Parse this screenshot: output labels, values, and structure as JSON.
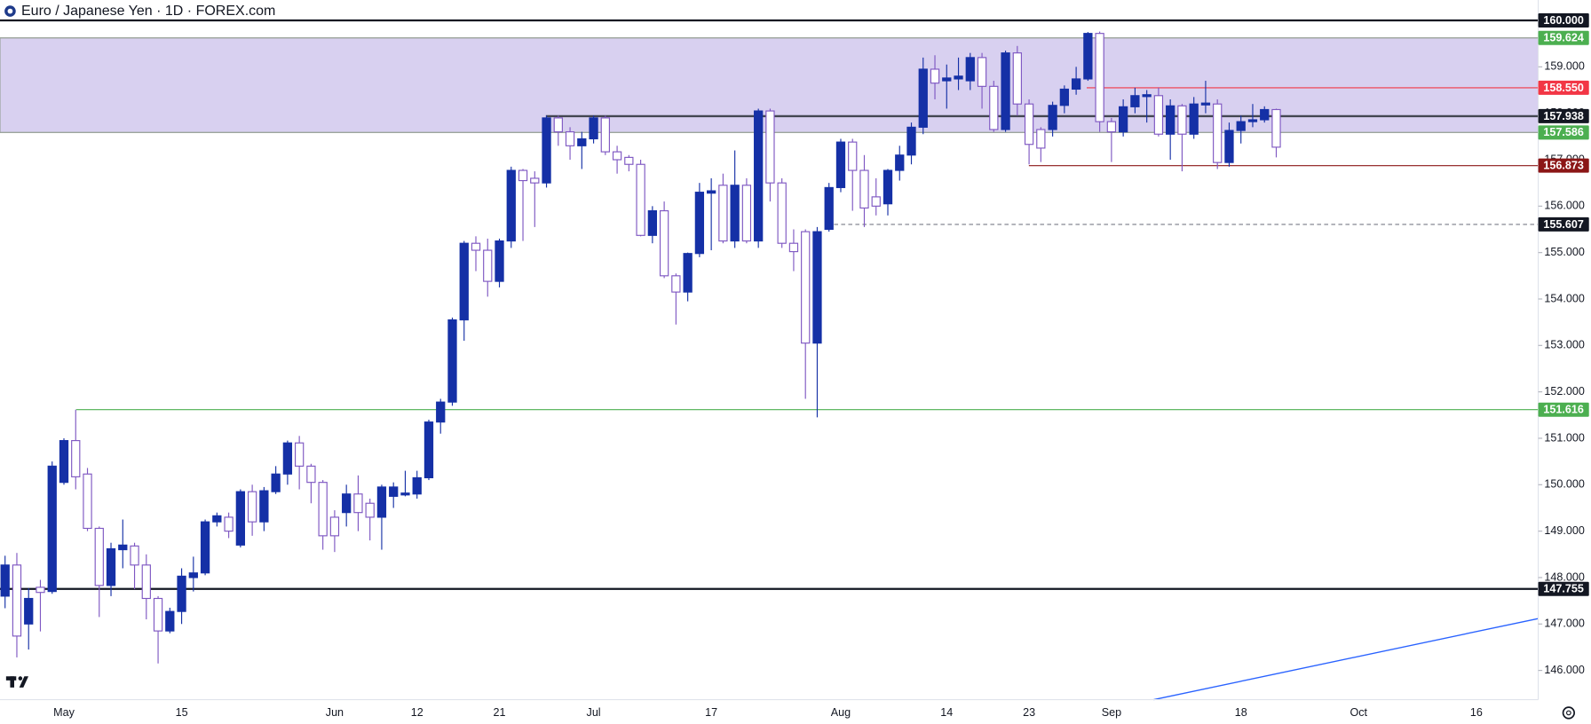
{
  "chart_data": {
    "type": "candlestick",
    "title": "Euro / Japanese Yen · 1D · FOREX.com",
    "categories": [
      null,
      null,
      null,
      null,
      null,
      "May",
      null,
      null,
      null,
      null,
      null,
      null,
      null,
      null,
      null,
      "15",
      null,
      null,
      null,
      null,
      null,
      null,
      null,
      null,
      null,
      null,
      null,
      null,
      "Jun",
      null,
      null,
      null,
      null,
      null,
      null,
      "12",
      null,
      null,
      null,
      null,
      null,
      null,
      "21",
      null,
      null,
      null,
      null,
      null,
      null,
      null,
      "Jul",
      null,
      null,
      null,
      null,
      null,
      null,
      null,
      null,
      null,
      "17",
      null,
      null,
      null,
      null,
      null,
      null,
      null,
      null,
      null,
      null,
      "Aug",
      null,
      null,
      null,
      null,
      null,
      null,
      null,
      null,
      "14",
      null,
      null,
      null,
      null,
      null,
      null,
      "23",
      null,
      null,
      null,
      null,
      null,
      null,
      "Sep",
      null,
      null,
      null,
      null,
      null,
      null,
      null,
      null,
      null,
      null,
      "18",
      null,
      null,
      null,
      null,
      null,
      null,
      null,
      null,
      null,
      "Oct",
      null,
      null,
      null,
      null,
      null,
      null,
      null,
      null,
      null,
      "16",
      null,
      null,
      null,
      null,
      null
    ],
    "open": [
      147.6,
      148.27,
      147,
      147.79,
      147.7,
      150.05,
      150.95,
      150.23,
      149.06,
      147.83,
      148.6,
      148.68,
      148.27,
      147.55,
      146.85,
      147.27,
      148,
      148.1,
      149.2,
      149.3,
      148.7,
      149.85,
      149.2,
      149.85,
      150.23,
      150.9,
      150.4,
      150.05,
      149.3,
      149.4,
      149.8,
      149.6,
      149.3,
      149.75,
      149.78,
      149.8,
      150.15,
      151.35,
      151.78,
      153.55,
      155.2,
      155.05,
      154.38,
      155.25,
      156.77,
      156.6,
      156.5,
      157.9,
      157.6,
      157.3,
      157.45,
      157.9,
      157.17,
      157.05,
      156.9,
      155.37,
      155.9,
      154.5,
      154.15,
      154.98,
      156.28,
      156.45,
      155.25,
      156.45,
      155.25,
      158.05,
      156.5,
      155.2,
      155.45,
      153.05,
      155.5,
      156.4,
      157.38,
      156.77,
      156.2,
      156.05,
      156.77,
      157.1,
      157.7,
      158.95,
      158.7,
      158.74,
      158.7,
      159.2,
      158.58,
      157.65,
      159.3,
      158.2,
      157.65,
      157.65,
      158.17,
      158.52,
      158.74,
      159.72,
      157.82,
      157.6,
      158.14,
      158.36,
      158.38,
      157.55,
      158.16,
      157.55,
      158.18,
      158.2,
      156.94,
      157.63,
      157.82,
      157.86,
      158.08,
      null,
      null,
      null,
      null,
      null,
      null,
      null,
      null,
      null,
      null,
      null,
      null,
      null,
      null,
      null,
      null,
      null,
      null,
      null,
      null,
      null,
      null
    ],
    "high": [
      148.47,
      148.53,
      147.77,
      147.95,
      150.5,
      151,
      151.616,
      150.36,
      149.1,
      148.75,
      149.25,
      148.75,
      148.5,
      147.6,
      147.35,
      148.2,
      148.45,
      149.25,
      149.4,
      149.4,
      149.9,
      150,
      149.95,
      150.4,
      150.95,
      151.05,
      150.45,
      150.1,
      149.45,
      150,
      150.2,
      149.7,
      150,
      150.05,
      150.3,
      150.3,
      151.4,
      151.85,
      153.6,
      155.25,
      155.35,
      155.3,
      155.3,
      156.85,
      156.8,
      156.75,
      157.95,
      157.95,
      157.7,
      157.6,
      157.95,
      157.95,
      157.3,
      157.1,
      157,
      156,
      156.1,
      154.55,
      155,
      156.5,
      156.6,
      156.7,
      157.2,
      156.6,
      158.1,
      158.1,
      156.6,
      155.5,
      155.5,
      155.55,
      156.5,
      157.45,
      157.45,
      157.1,
      156.6,
      156.8,
      157.3,
      157.8,
      159.2,
      159.25,
      159.05,
      159.2,
      159.3,
      159.3,
      158.7,
      159.35,
      159.45,
      158.3,
      157.7,
      158.25,
      158.6,
      159,
      159.75,
      159.76,
      157.9,
      158.3,
      158.55,
      158.5,
      158.55,
      158.3,
      158.2,
      158.35,
      158.7,
      158.3,
      157.8,
      157.95,
      158.2,
      158.15,
      158.1,
      null,
      null,
      null,
      null,
      null,
      null,
      null,
      null,
      null,
      null,
      null,
      null,
      null,
      null,
      null,
      null,
      null,
      null,
      null,
      null,
      null,
      null
    ],
    "low": [
      147.34,
      146.28,
      146.45,
      146.84,
      147.65,
      150,
      149.9,
      149,
      147.15,
      147.6,
      148.2,
      147.75,
      147.1,
      146.15,
      146.8,
      147,
      147.7,
      148.05,
      149.1,
      148.85,
      148.65,
      148.9,
      149,
      149.8,
      150,
      149.9,
      149.6,
      148.6,
      148.55,
      149.1,
      149,
      148.8,
      148.6,
      149.5,
      149.75,
      149.7,
      150.1,
      151.1,
      151.7,
      153.1,
      154.6,
      154.05,
      154.25,
      155.1,
      155.25,
      155.55,
      156.4,
      157.3,
      157,
      156.8,
      157.35,
      157.1,
      156.7,
      156.75,
      155.35,
      155.2,
      154.45,
      153.45,
      153.95,
      154.9,
      155.05,
      155.2,
      155.1,
      155.2,
      155.1,
      156.1,
      155.1,
      154.6,
      151.85,
      151.45,
      155.45,
      156.3,
      155.9,
      155.55,
      155.8,
      155.8,
      156.55,
      156.9,
      157.55,
      158.3,
      158.1,
      158.5,
      158.5,
      158.1,
      157.6,
      157.6,
      157.95,
      156.9,
      156.95,
      157.5,
      158,
      158.4,
      158.7,
      157.6,
      156.95,
      157.5,
      158,
      157.8,
      157.5,
      157,
      156.75,
      157.45,
      158,
      156.8,
      156.85,
      157.35,
      157.7,
      157.8,
      157.05,
      null,
      null,
      null,
      null,
      null,
      null,
      null,
      null,
      null,
      null,
      null,
      null,
      null,
      null,
      null,
      null,
      null,
      null,
      null,
      null,
      null,
      null
    ],
    "close": [
      148.27,
      146.74,
      147.55,
      147.68,
      150.4,
      150.95,
      150.17,
      149.06,
      147.83,
      148.62,
      148.7,
      148.27,
      147.55,
      146.85,
      147.27,
      148.03,
      148.1,
      149.2,
      149.33,
      149,
      149.85,
      149.2,
      149.87,
      150.23,
      150.9,
      150.4,
      150.05,
      148.9,
      148.9,
      149.8,
      149.4,
      149.3,
      149.95,
      149.95,
      149.82,
      150.15,
      151.35,
      151.78,
      153.55,
      155.2,
      155.05,
      154.38,
      155.25,
      156.77,
      156.55,
      156.5,
      157.9,
      157.6,
      157.3,
      157.45,
      157.9,
      157.17,
      157,
      156.9,
      155.37,
      155.9,
      154.5,
      154.15,
      154.98,
      156.3,
      156.33,
      155.25,
      156.45,
      155.25,
      158.05,
      156.5,
      155.2,
      155.02,
      153.05,
      155.45,
      156.4,
      157.38,
      156.77,
      155.96,
      156,
      156.77,
      157.1,
      157.7,
      158.95,
      158.65,
      158.76,
      158.8,
      159.2,
      158.58,
      157.65,
      159.3,
      158.2,
      157.33,
      157.25,
      158.17,
      158.52,
      158.74,
      159.72,
      157.82,
      157.6,
      158.14,
      158.38,
      158.4,
      157.55,
      158.16,
      157.55,
      158.2,
      158.22,
      156.94,
      157.63,
      157.82,
      157.86,
      158.08,
      157.27,
      null,
      null,
      null,
      null,
      null,
      null,
      null,
      null,
      null,
      null,
      null,
      null,
      null,
      null,
      null,
      null,
      null,
      null,
      null,
      null,
      null,
      null
    ],
    "up_color": "#1530a6",
    "down_color": "#7e57c2",
    "ylim": [
      145.37,
      160.44
    ],
    "yticks": [
      {
        "value": 146,
        "label": "146.000"
      },
      {
        "value": 147,
        "label": "147.000"
      },
      {
        "value": 148,
        "label": "148.000"
      },
      {
        "value": 149,
        "label": "149.000"
      },
      {
        "value": 150,
        "label": "150.000"
      },
      {
        "value": 151,
        "label": "151.000"
      },
      {
        "value": 152,
        "label": "152.000"
      },
      {
        "value": 153,
        "label": "153.000"
      },
      {
        "value": 154,
        "label": "154.000"
      },
      {
        "value": 155,
        "label": "155.000"
      },
      {
        "value": 156,
        "label": "156.000"
      },
      {
        "value": 157,
        "label": "157.000"
      },
      {
        "value": 158,
        "label": "158.000"
      },
      {
        "value": 159,
        "label": "159.000"
      }
    ],
    "levels": [
      {
        "value": 160,
        "label": "160.000",
        "color": "#131722"
      },
      {
        "value": 159.624,
        "label": "159.624",
        "color": "#4caf50"
      },
      {
        "value": 158.55,
        "label": "158.550",
        "color": "#f23645"
      },
      {
        "value": 157.938,
        "label": "157.938",
        "color": "#131722"
      },
      {
        "value": 157.586,
        "label": "157.586",
        "color": "#4caf50"
      },
      {
        "value": 156.873,
        "label": "156.873",
        "color": "#8b1616"
      },
      {
        "value": 155.607,
        "label": "155.607",
        "color": "#131722"
      },
      {
        "value": 151.616,
        "label": "151.616",
        "color": "#4caf50"
      },
      {
        "value": 147.755,
        "label": "147.755",
        "color": "#131722"
      }
    ],
    "zone_color": "#d8d0f0"
  }
}
